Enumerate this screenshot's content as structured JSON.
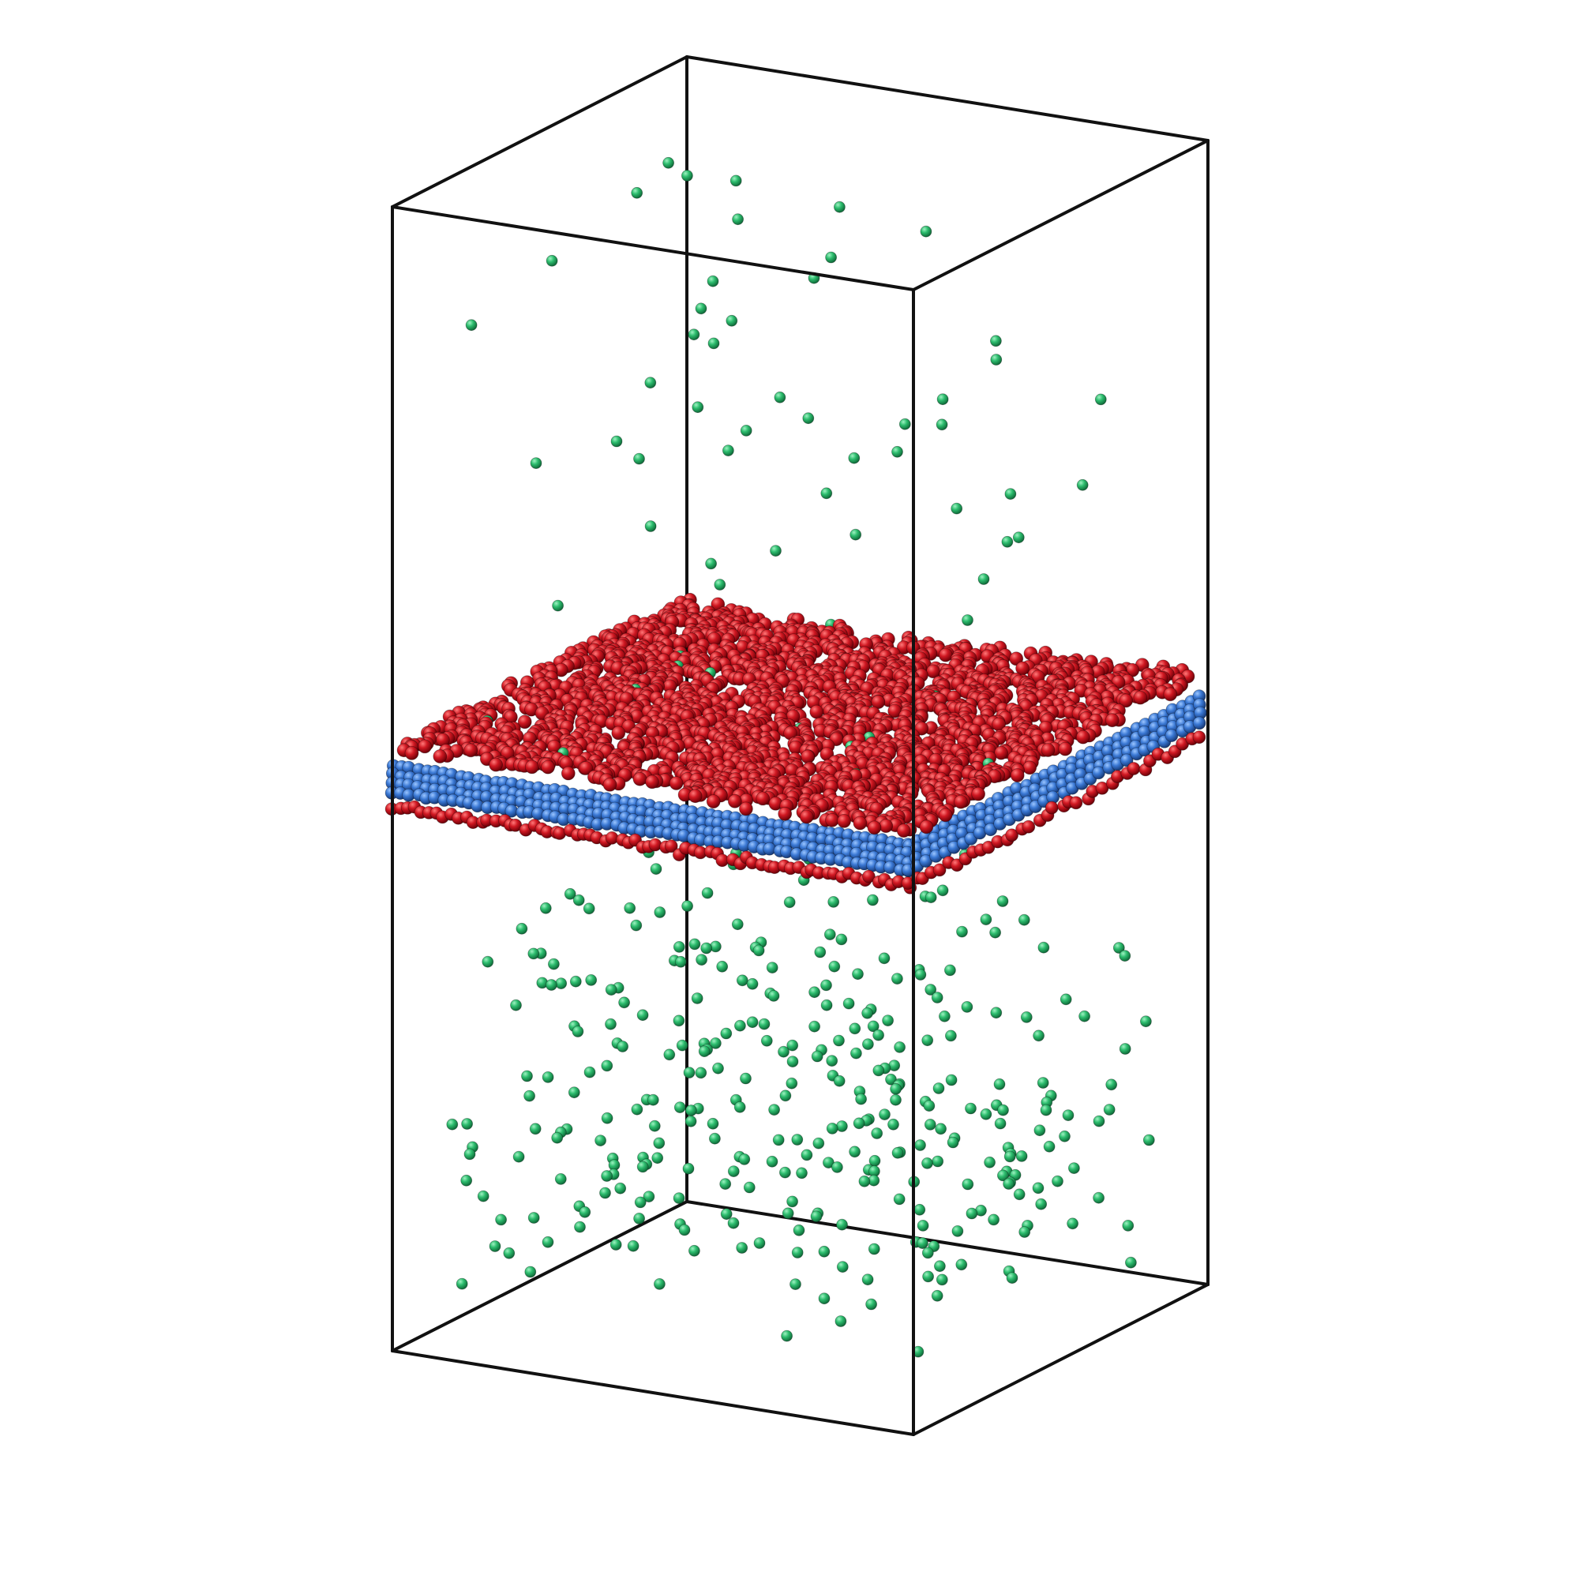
{
  "scene": {
    "background_color": "#ffffff",
    "box_edge_color": "#111111",
    "atom_colors": {
      "membrane_surface": "#d01822",
      "membrane_core": "#3a78d4",
      "dispersed": "#2dbd6e"
    },
    "legend_text": ""
  }
}
